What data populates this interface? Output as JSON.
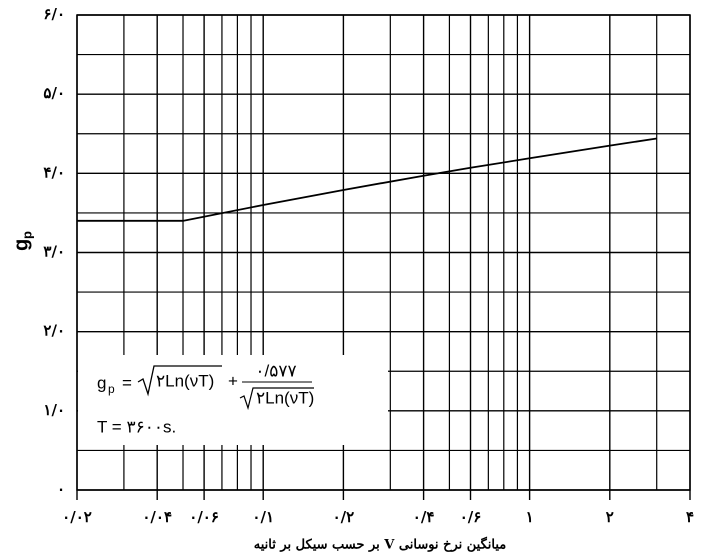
{
  "chart_data": {
    "type": "line",
    "x_label": "میانگین نرخ نوسانی  V بر حسب سیکل بر ثانیه",
    "y_label": "g",
    "y_label_sub": "p",
    "x": [
      0.02,
      0.05,
      0.1,
      0.2,
      0.4,
      0.6,
      1,
      2,
      3
    ],
    "series": [
      {
        "color": "#000000",
        "values": [
          3.4,
          3.4,
          3.6,
          3.79,
          3.97,
          4.07,
          4.19,
          4.35,
          4.44
        ]
      }
    ],
    "xlim": [
      0.02,
      4
    ],
    "xlog": true,
    "xticks": [
      {
        "value": 0.02,
        "label": "۰/۰۲"
      },
      {
        "value": 0.04,
        "label": "۰/۰۴"
      },
      {
        "value": 0.06,
        "label": "۰/۰۶"
      },
      {
        "value": 0.1,
        "label": "۰/۱"
      },
      {
        "value": 0.2,
        "label": "۰/۲"
      },
      {
        "value": 0.4,
        "label": "۰/۴"
      },
      {
        "value": 0.6,
        "label": "۰/۶"
      },
      {
        "value": 1,
        "label": "۱"
      },
      {
        "value": 2,
        "label": "۲"
      },
      {
        "value": 4,
        "label": "۴"
      }
    ],
    "ylim": [
      0,
      6
    ],
    "yticks": [
      {
        "value": 0,
        "label": "۰"
      },
      {
        "value": 1,
        "label": "۱/۰"
      },
      {
        "value": 2,
        "label": "۲/۰"
      },
      {
        "value": 3,
        "label": "۳/۰"
      },
      {
        "value": 4,
        "label": "۴/۰"
      },
      {
        "value": 5,
        "label": "۵/۰"
      },
      {
        "value": 6,
        "label": "۶/۰"
      }
    ],
    "xgrid": [
      0.03,
      0.05,
      0.07,
      0.08,
      0.09,
      0.3,
      0.5,
      0.7,
      0.8,
      0.9,
      3
    ],
    "ygrid": [
      0.5,
      1.5,
      2.5,
      3.5,
      4.5,
      5.5
    ],
    "grid": true,
    "formula": {
      "g": "g",
      "sub": "p",
      "eq": "=",
      "radicand": "۲Ln(νT)",
      "plus": "+",
      "numerator": "۰/۵۷۷",
      "denominator": "۲Ln(νT)"
    },
    "period": "T = ۳۶۰۰s."
  }
}
